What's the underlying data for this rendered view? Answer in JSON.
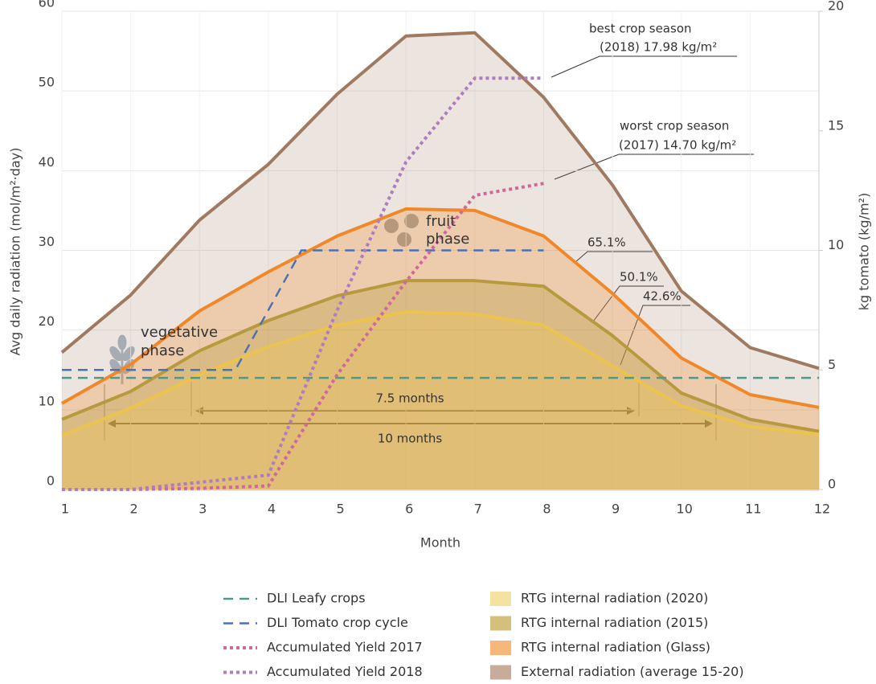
{
  "chart_data": {
    "type": "line",
    "xlabel": "Month",
    "ylabel": "Avg daily radiation (mol/m²·day)",
    "y2label": "kg tomato (kg/m²)",
    "x": [
      1,
      2,
      3,
      4,
      5,
      6,
      7,
      8,
      9,
      10,
      11,
      12
    ],
    "xlim": [
      1,
      12
    ],
    "xticks": [
      1,
      2,
      3,
      4,
      5,
      6,
      7,
      8,
      9,
      10,
      11,
      12
    ],
    "ylim": [
      0,
      60
    ],
    "yticks": [
      0,
      10,
      20,
      30,
      40,
      50,
      60
    ],
    "y2lim": [
      0,
      20
    ],
    "y2ticks": [
      0,
      5,
      10,
      15,
      20
    ],
    "grid": true,
    "series": [
      {
        "name": "DLI Leafy crops",
        "color": "#4a9a8e",
        "style": "dashed",
        "x": [
          1,
          12
        ],
        "values": [
          14,
          14
        ]
      },
      {
        "name": "DLI Tomato crop cycle",
        "color": "#4a72b0",
        "style": "dashed",
        "x": [
          1,
          3.52,
          4.48,
          8
        ],
        "values": [
          15,
          15,
          30,
          30
        ]
      },
      {
        "name": "Accumulated Yield 2017",
        "color": "#d0699a",
        "style": "dotted",
        "axis": "y2",
        "x": [
          1,
          2,
          3,
          4,
          5,
          6,
          7,
          8
        ],
        "values": [
          0,
          0,
          0.05,
          0.15,
          4.8,
          8.7,
          12.3,
          12.8
        ]
      },
      {
        "name": "Accumulated Yield 2018",
        "color": "#b07cc0",
        "style": "dotted",
        "axis": "y2",
        "x": [
          1,
          2,
          3,
          4,
          5,
          6,
          7,
          8
        ],
        "values": [
          0,
          0,
          0.3,
          0.6,
          7.5,
          13.7,
          17.2,
          17.2
        ]
      },
      {
        "name": "RTG internal radiation (2020)",
        "color": "#ebc34f",
        "fill": "rgba(240,200,80,0.3)",
        "swatch": "#f5e2a0",
        "style": "area",
        "values": [
          6.8,
          10.2,
          14.4,
          17.9,
          20.6,
          22.3,
          22.0,
          20.6,
          15.5,
          10.5,
          7.9,
          6.9
        ]
      },
      {
        "name": "RTG internal radiation (2015)",
        "color": "#b89a3e",
        "fill": "rgba(184,154,62,0.35)",
        "swatch": "#d4c07a",
        "style": "area",
        "values": [
          8.8,
          12.3,
          17.4,
          21.2,
          24.3,
          26.2,
          26.2,
          25.5,
          19.3,
          12.1,
          8.8,
          7.3
        ]
      },
      {
        "name": "RTG internal radiation (Glass)",
        "color": "#f0882a",
        "fill": "rgba(242,142,43,0.28)",
        "swatch": "#f5b87a",
        "style": "area",
        "values": [
          10.8,
          15.7,
          22.4,
          27.3,
          31.8,
          35.2,
          35.0,
          31.8,
          24.6,
          16.5,
          11.9,
          10.3
        ]
      },
      {
        "name": "External radiation (average 15-20)",
        "color": "#a07a60",
        "fill": "rgba(160,122,96,0.2)",
        "swatch": "#c9ab9c",
        "style": "area",
        "values": [
          17.2,
          24.4,
          33.8,
          40.8,
          49.6,
          56.9,
          57.3,
          49.2,
          38.2,
          24.9,
          17.8,
          15.2
        ]
      }
    ],
    "annotations": [
      "best crop season",
      "(2018) 17.98 kg/m²",
      "worst crop season",
      "(2017) 14.70 kg/m²",
      "65.1%",
      "50.1%",
      "42.6%",
      "vegetative",
      "phase",
      "fruit",
      "phase",
      "7.5 months",
      "10 months"
    ]
  }
}
